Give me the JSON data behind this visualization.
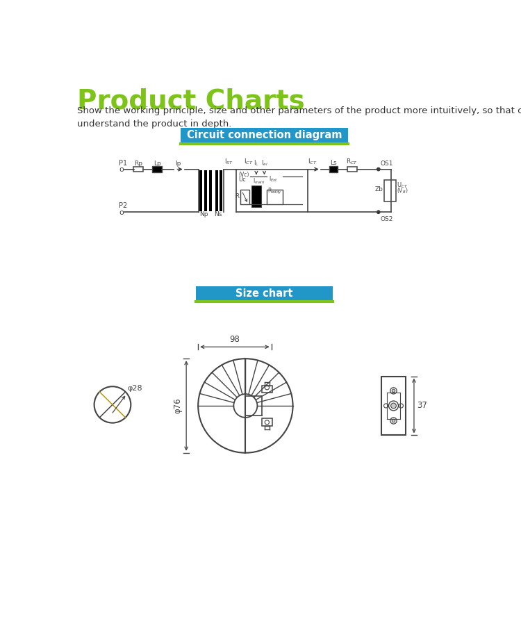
{
  "title": "Product Charts",
  "title_color": "#7dc31a",
  "subtitle": "Show the working principle, size and other parameters of the product more intuitively, so that customers can\nunderstand the product in depth.",
  "subtitle_color": "#333333",
  "section1_label": "Circuit connection diagram",
  "section2_label": "Size chart",
  "banner_bg": "#2196c8",
  "banner_text_color": "#ffffff",
  "banner_green_line": "#7dc31a",
  "line_color": "#444444",
  "dim_color": "#444444",
  "bg_color": "#ffffff"
}
